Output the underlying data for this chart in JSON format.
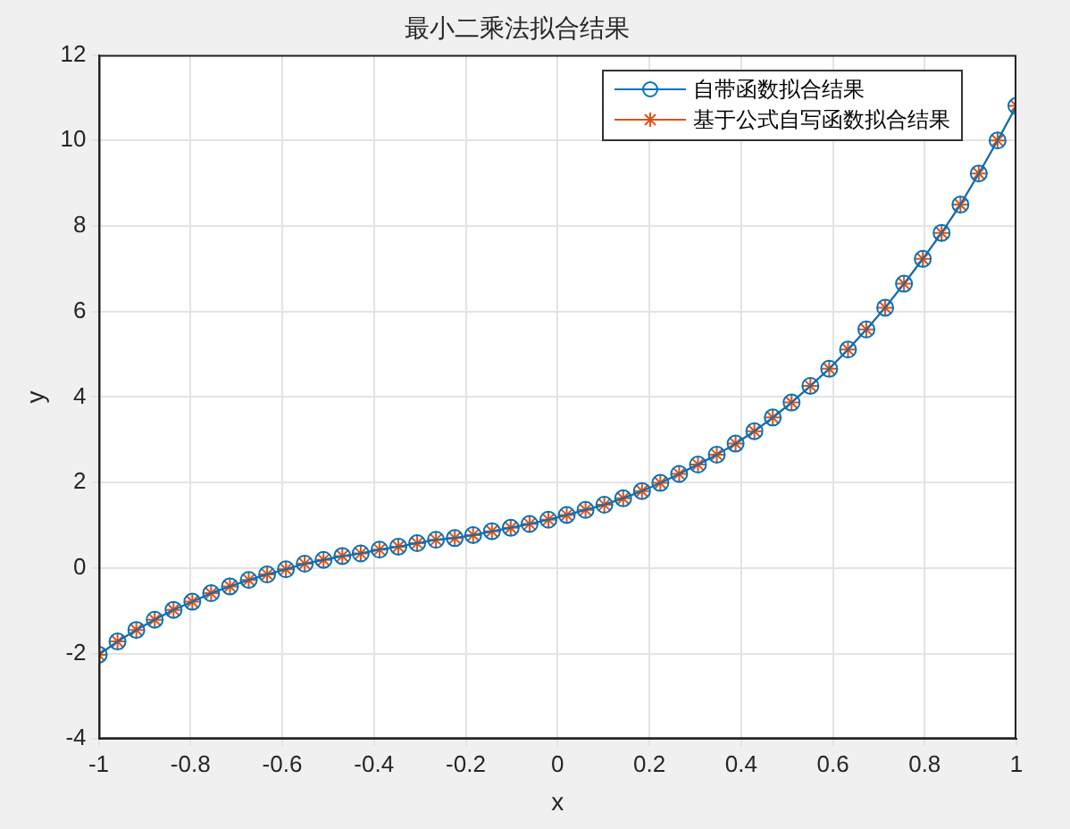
{
  "chart_data": {
    "type": "line",
    "title": "最小二乘法拟合结果",
    "xlabel": "x",
    "ylabel": "y",
    "x": [
      -1,
      -0.959,
      -0.918,
      -0.878,
      -0.837,
      -0.796,
      -0.755,
      -0.714,
      -0.673,
      -0.633,
      -0.592,
      -0.551,
      -0.51,
      -0.469,
      -0.429,
      -0.388,
      -0.347,
      -0.306,
      -0.265,
      -0.224,
      -0.184,
      -0.143,
      -0.102,
      -0.061,
      -0.02,
      0.02,
      0.061,
      0.102,
      0.143,
      0.184,
      0.224,
      0.265,
      0.306,
      0.347,
      0.388,
      0.429,
      0.469,
      0.51,
      0.551,
      0.592,
      0.633,
      0.673,
      0.714,
      0.755,
      0.796,
      0.837,
      0.878,
      0.918,
      0.959,
      1
    ],
    "series": [
      {
        "name": "自带函数拟合结果",
        "color": "#0072bd",
        "marker": "circle",
        "values": [
          -2.03,
          -1.72,
          -1.45,
          -1.21,
          -0.98,
          -0.79,
          -0.59,
          -0.43,
          -0.28,
          -0.15,
          -0.03,
          0.1,
          0.19,
          0.28,
          0.34,
          0.43,
          0.5,
          0.58,
          0.66,
          0.7,
          0.77,
          0.86,
          0.94,
          1.03,
          1.13,
          1.24,
          1.36,
          1.48,
          1.63,
          1.8,
          1.99,
          2.2,
          2.42,
          2.65,
          2.91,
          3.2,
          3.52,
          3.87,
          4.26,
          4.66,
          5.11,
          5.58,
          6.09,
          6.65,
          7.23,
          7.84,
          8.5,
          9.23,
          10,
          10.81
        ]
      },
      {
        "name": "基于公式自写函数拟合结果",
        "color": "#d95319",
        "marker": "cross",
        "values": [
          -2.03,
          -1.72,
          -1.45,
          -1.21,
          -0.98,
          -0.79,
          -0.59,
          -0.43,
          -0.28,
          -0.15,
          -0.03,
          0.1,
          0.19,
          0.28,
          0.34,
          0.43,
          0.5,
          0.58,
          0.66,
          0.7,
          0.77,
          0.86,
          0.94,
          1.03,
          1.13,
          1.24,
          1.36,
          1.48,
          1.63,
          1.8,
          1.99,
          2.2,
          2.42,
          2.65,
          2.91,
          3.2,
          3.52,
          3.87,
          4.26,
          4.66,
          5.11,
          5.58,
          6.09,
          6.65,
          7.23,
          7.84,
          8.5,
          9.23,
          10,
          10.81
        ]
      }
    ],
    "xlim": [
      -1,
      1
    ],
    "xticks": [
      -1,
      -0.8,
      -0.6,
      -0.4,
      -0.2,
      0,
      0.2,
      0.4,
      0.6,
      0.8,
      1
    ],
    "ylim": [
      -4,
      12
    ],
    "yticks": [
      -4,
      -2,
      0,
      2,
      4,
      6,
      8,
      10,
      12
    ],
    "grid": true,
    "legend": "top right",
    "line_style": "solid"
  }
}
